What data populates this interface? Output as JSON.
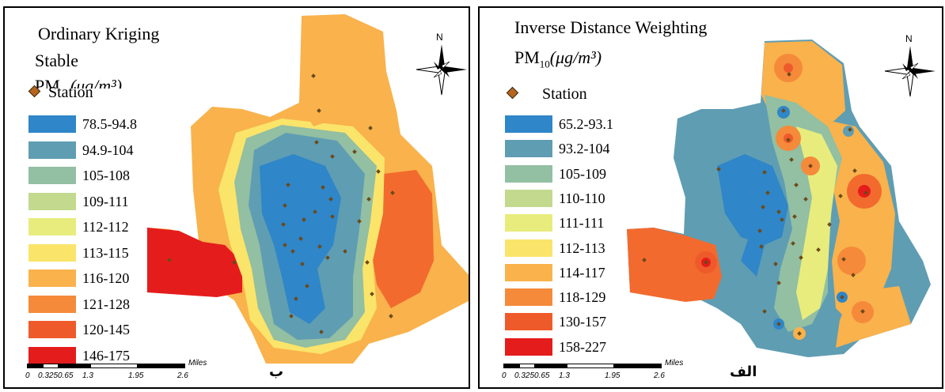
{
  "left_panel": {
    "title_method": "Ordinary Kriging",
    "title_model": "Stable",
    "pm_prefix": "PM",
    "pm_sub": "10",
    "pm_unit": "(μg/m³)",
    "north": "N",
    "panel_tag": "ب",
    "legend": {
      "station_label": "Station",
      "classes": [
        {
          "label": "78.5-94.8",
          "color": "#2f86c8"
        },
        {
          "label": "94.9-104",
          "color": "#5f9db3"
        },
        {
          "label": "105-108",
          "color": "#93bfa2"
        },
        {
          "label": "109-111",
          "color": "#c2d98e"
        },
        {
          "label": "112-112",
          "color": "#e8ec7c"
        },
        {
          "label": "113-115",
          "color": "#fbe46a"
        },
        {
          "label": "116-120",
          "color": "#f9b24c"
        },
        {
          "label": "121-128",
          "color": "#f58a3a"
        },
        {
          "label": "120-145",
          "color": "#ef5a2b"
        },
        {
          "label": "146-175",
          "color": "#e41c1c"
        }
      ]
    },
    "scale": {
      "ticks": [
        "0",
        "0.3250.65",
        "1.3",
        "1.95",
        "2.6"
      ],
      "unit": "Miles"
    }
  },
  "right_panel": {
    "title_method": "Inverse Distance Weighting",
    "pm_prefix": "PM",
    "pm_sub": "10",
    "pm_unit": "(μg/m³)",
    "north": "N",
    "panel_tag": "الف",
    "legend": {
      "station_label": "Station",
      "classes": [
        {
          "label": "65.2-93.1",
          "color": "#2f86c8"
        },
        {
          "label": "93.2-104",
          "color": "#5f9db3"
        },
        {
          "label": "105-109",
          "color": "#93bfa2"
        },
        {
          "label": "110-110",
          "color": "#c2d98e"
        },
        {
          "label": "111-111",
          "color": "#e8ec7c"
        },
        {
          "label": "112-113",
          "color": "#fbe46a"
        },
        {
          "label": "114-117",
          "color": "#f9b24c"
        },
        {
          "label": "118-129",
          "color": "#f58a3a"
        },
        {
          "label": "130-157",
          "color": "#ef5a2b"
        },
        {
          "label": "158-227",
          "color": "#e41c1c"
        }
      ]
    },
    "scale": {
      "ticks": [
        "0",
        "0.3250.65",
        "1.3",
        "1.95",
        "2.6"
      ],
      "unit": "Miles"
    }
  }
}
